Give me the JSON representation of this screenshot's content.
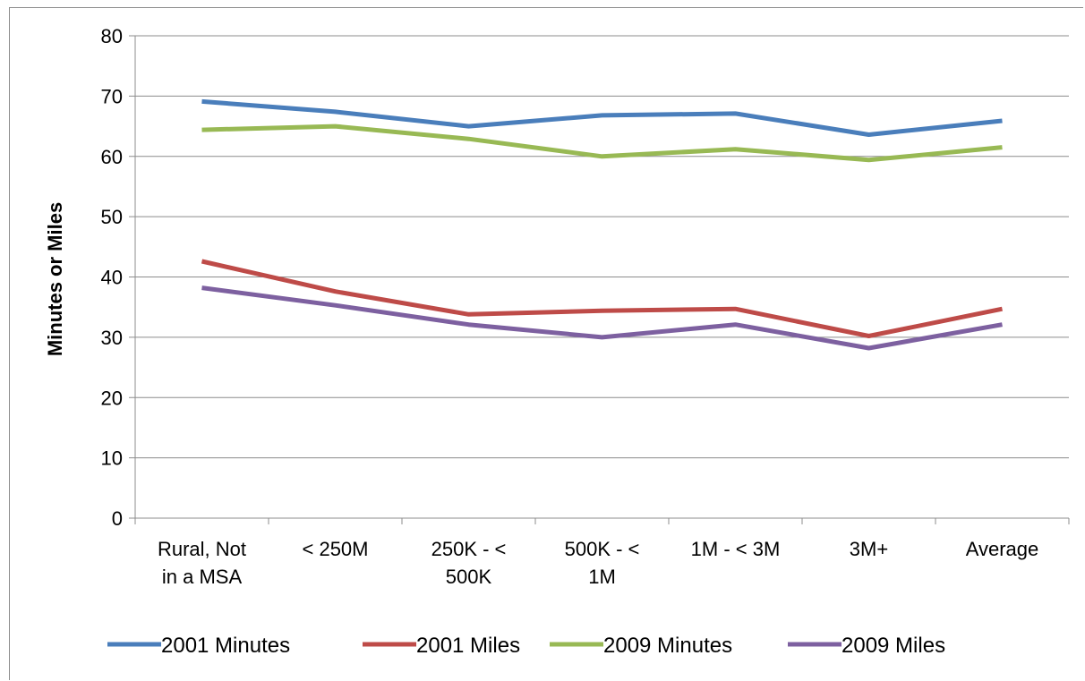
{
  "chart_data": {
    "type": "line",
    "categories": [
      [
        "Rural, Not",
        "in a MSA"
      ],
      [
        "< 250M"
      ],
      [
        "250K - <",
        "500K"
      ],
      [
        "500K - <",
        "1M"
      ],
      [
        "1M - < 3M"
      ],
      [
        "3M+"
      ],
      [
        "Average"
      ]
    ],
    "ylabel": "Minutes or Miles",
    "xlabel": "",
    "ylim": [
      0,
      80
    ],
    "yticks": [
      0,
      10,
      20,
      30,
      40,
      50,
      60,
      70,
      80
    ],
    "grid": "horizontal",
    "legend_position": "bottom",
    "series": [
      {
        "name": "2001 Minutes",
        "color": "#4a7ebb",
        "values": [
          69.1,
          67.4,
          65.0,
          66.8,
          67.1,
          63.6,
          65.9
        ]
      },
      {
        "name": "2001 Miles",
        "color": "#be4b48",
        "values": [
          42.6,
          37.6,
          33.8,
          34.4,
          34.7,
          30.2,
          34.7
        ]
      },
      {
        "name": "2009 Minutes",
        "color": "#98b954",
        "values": [
          64.4,
          65.0,
          62.9,
          60.0,
          61.2,
          59.4,
          61.5
        ]
      },
      {
        "name": "2009 Miles",
        "color": "#7d60a0",
        "values": [
          38.2,
          35.3,
          32.1,
          30.0,
          32.1,
          28.2,
          32.1
        ]
      }
    ]
  }
}
